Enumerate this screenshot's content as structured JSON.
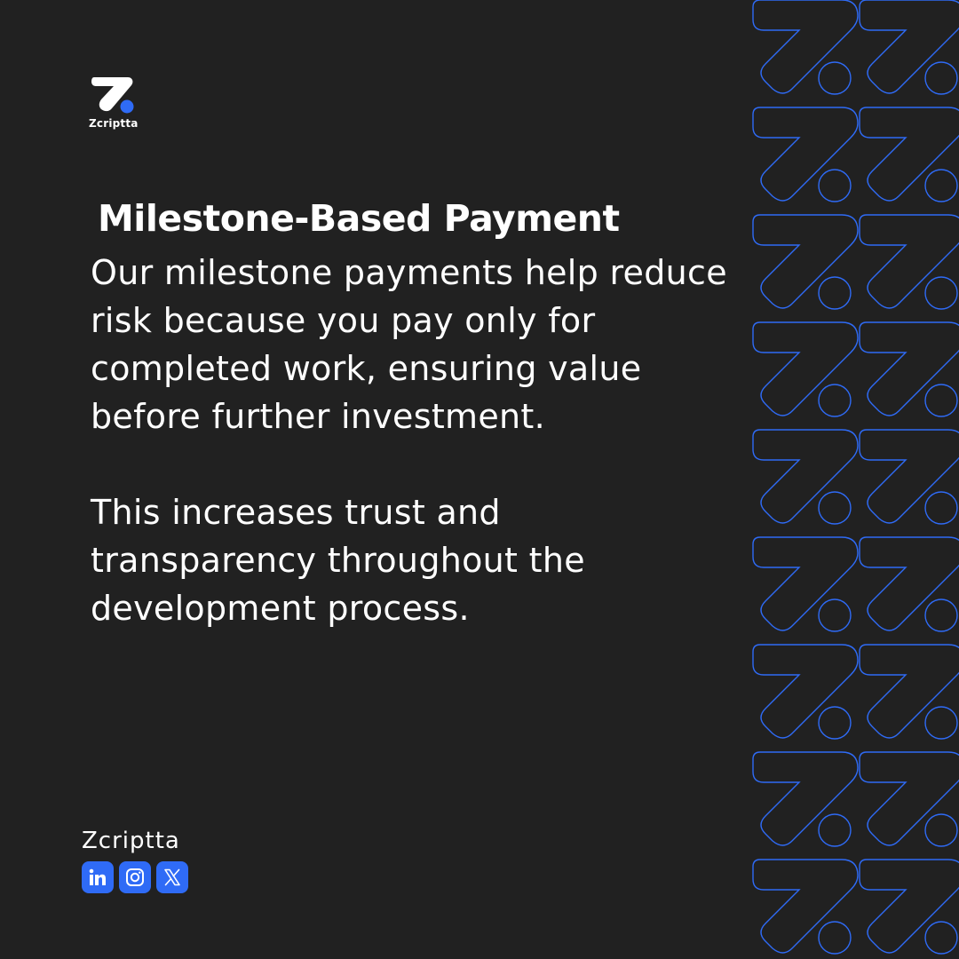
{
  "brand": {
    "name": "Zcriptta",
    "accent_color": "#2f6bf6",
    "logo_icon": "zcriptta-z-logo"
  },
  "content": {
    "heading": "Milestone-Based Payment",
    "paragraph_1": "Our milestone payments help reduce risk because you pay only for completed work, ensuring value before further investment.",
    "paragraph_2": "This increases trust and transparency throughout the development process."
  },
  "footer": {
    "name": "Zcriptta",
    "socials": [
      {
        "icon": "linkedin-icon"
      },
      {
        "icon": "instagram-icon"
      },
      {
        "icon": "x-icon"
      }
    ]
  }
}
